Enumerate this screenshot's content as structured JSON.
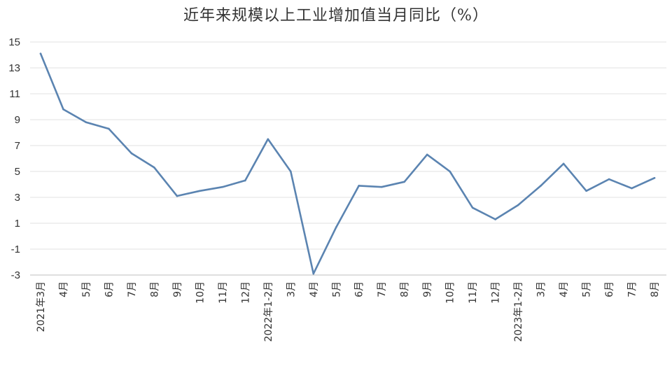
{
  "chart_data": {
    "type": "line",
    "title": "近年来规模以上工业增加值当月同比（%）",
    "categories": [
      "2021年3月",
      "4月",
      "5月",
      "6月",
      "7月",
      "8月",
      "9月",
      "10月",
      "11月",
      "12月",
      "2022年1-2月",
      "3月",
      "4月",
      "5月",
      "6月",
      "7月",
      "8月",
      "9月",
      "10月",
      "11月",
      "12月",
      "2023年1-2月",
      "3月",
      "4月",
      "5月",
      "6月",
      "7月",
      "8月"
    ],
    "series": [
      {
        "values": [
          14.1,
          9.8,
          8.8,
          8.3,
          6.4,
          5.3,
          3.1,
          3.5,
          3.8,
          4.3,
          7.5,
          5.0,
          -2.9,
          0.7,
          3.9,
          3.8,
          4.2,
          6.3,
          5.0,
          2.2,
          1.3,
          2.4,
          3.9,
          5.6,
          3.5,
          4.4,
          3.7,
          4.5
        ]
      }
    ],
    "y_ticks": [
      15,
      13,
      11,
      9,
      7,
      5,
      3,
      1,
      -1,
      -3
    ],
    "ylim": [
      -3,
      15
    ],
    "grid": true,
    "line_color": "#5b84b1",
    "grid_color": "#e0e0e0",
    "axis_color": "#bfbfbf"
  }
}
